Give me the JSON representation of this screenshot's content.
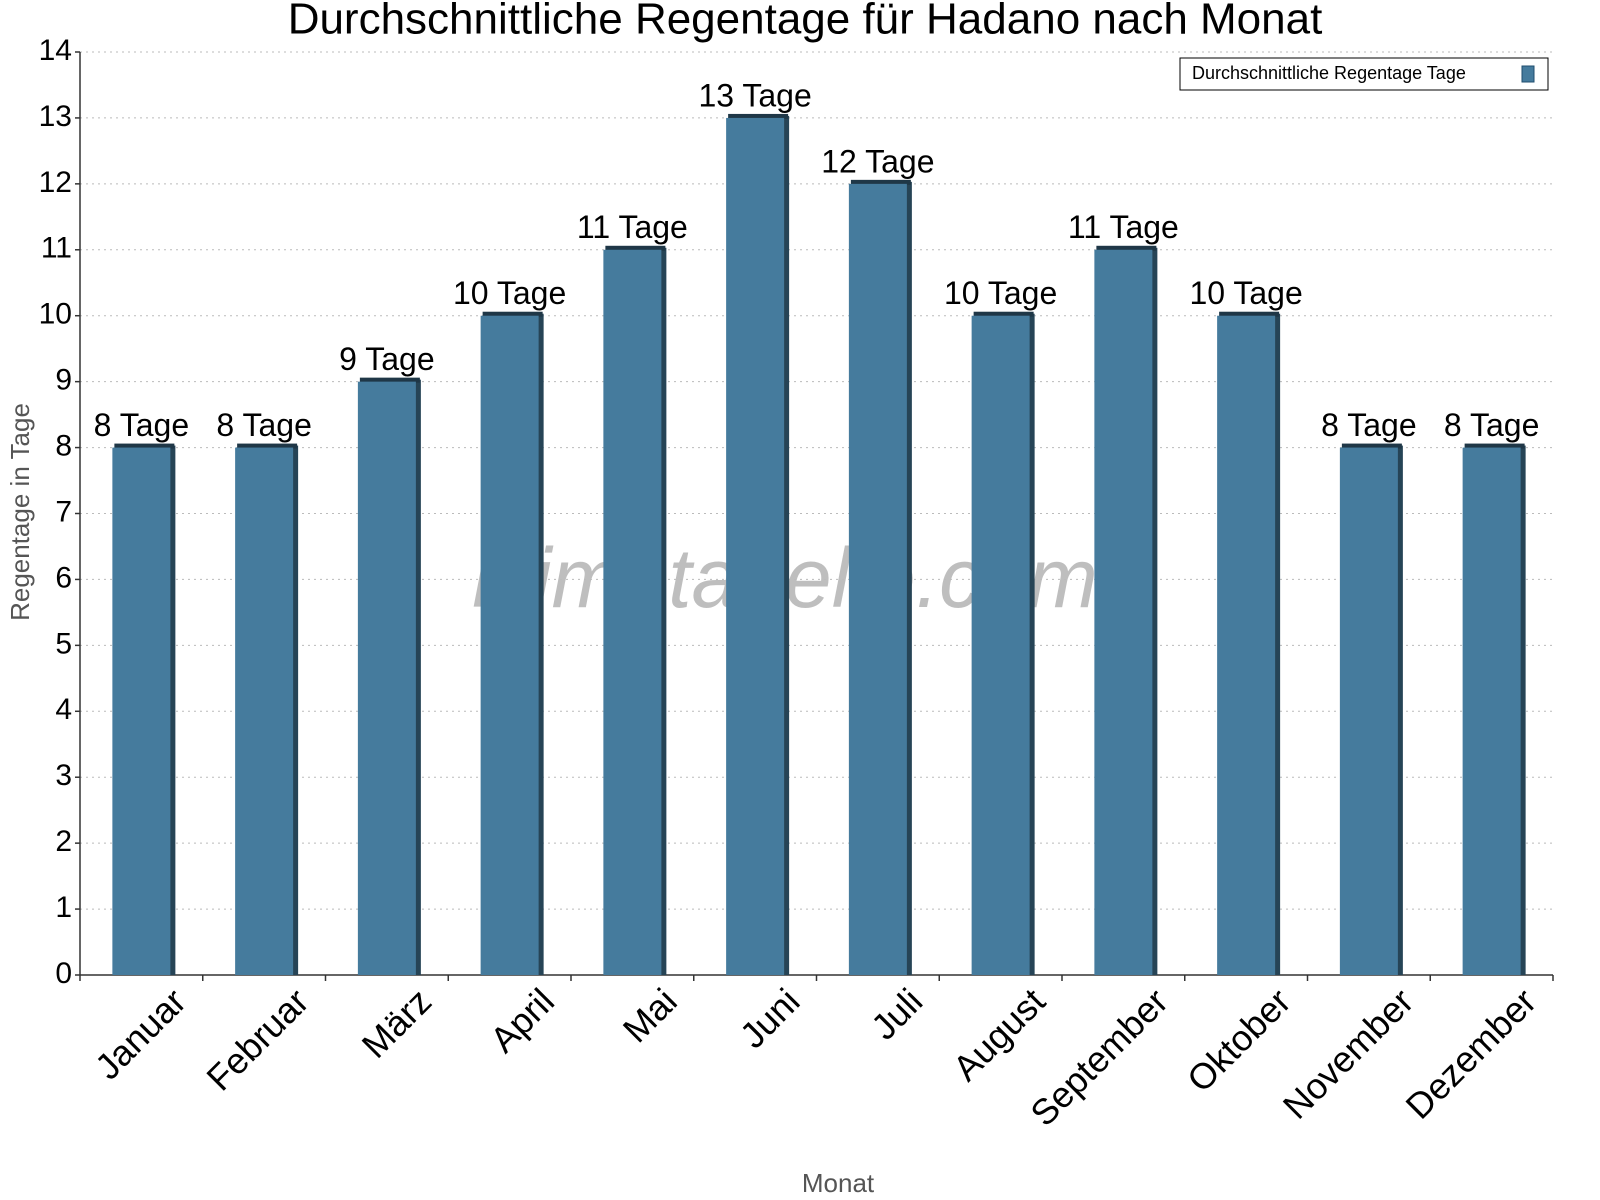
{
  "chart_data": {
    "type": "bar",
    "title": "Durchschnittliche Regentage für Hadano nach Monat",
    "x_label": "Monat",
    "y_label": "Regentage in Tage",
    "watermark": "klimatabelle.com",
    "categories": [
      "Januar",
      "Februar",
      "März",
      "April",
      "Mai",
      "Juni",
      "Juli",
      "August",
      "September",
      "Oktober",
      "November",
      "Dezember"
    ],
    "series": [
      {
        "name": "Durchschnittliche Regentage Tage",
        "color": "#457b9d",
        "values": [
          8,
          8,
          9,
          10,
          11,
          13,
          12,
          10,
          11,
          10,
          8,
          8
        ],
        "value_labels": [
          "8 Tage",
          "8 Tage",
          "9 Tage",
          "10 Tage",
          "11 Tage",
          "13 Tage",
          "12 Tage",
          "10 Tage",
          "11 Tage",
          "10 Tage",
          "8 Tage",
          "8 Tage"
        ]
      }
    ],
    "ylim": [
      0,
      14
    ],
    "yticks": [
      0,
      1,
      2,
      3,
      4,
      5,
      6,
      7,
      8,
      9,
      10,
      11,
      12,
      13,
      14
    ],
    "grid": true,
    "legend": "top-right"
  }
}
